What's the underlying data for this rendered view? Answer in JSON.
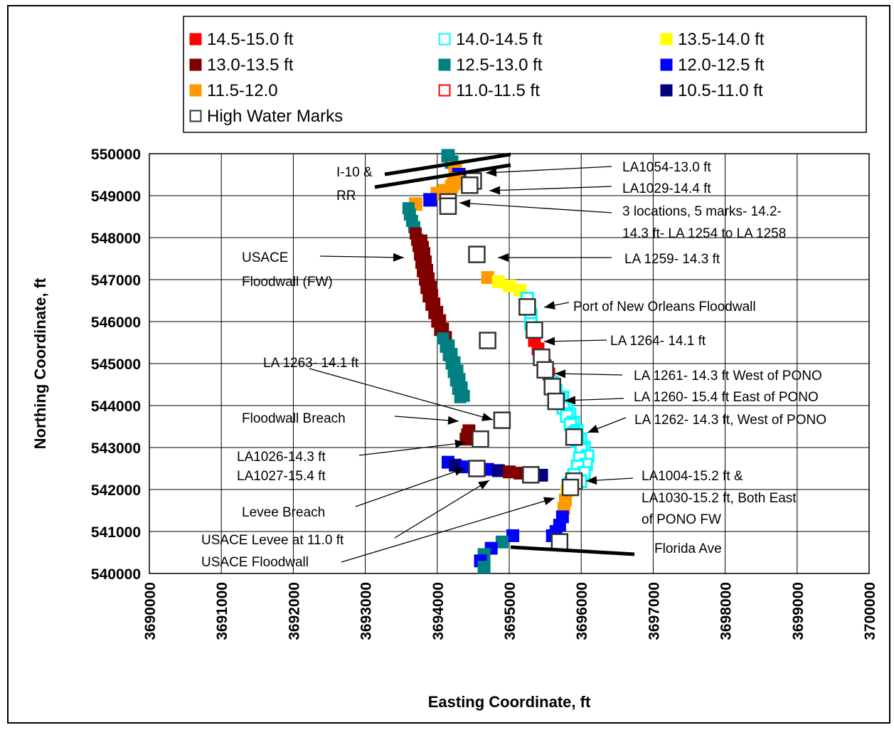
{
  "chart_data": {
    "type": "scatter",
    "xlabel": "Easting Coordinate, ft",
    "ylabel": "Northing Coordinate, ft",
    "xlim": [
      3690000,
      3700000
    ],
    "ylim": [
      540000,
      550000
    ],
    "x_ticks": [
      "3690000",
      "3691000",
      "3692000",
      "3693000",
      "3694000",
      "3695000",
      "3696000",
      "3697000",
      "3698000",
      "3699000",
      "3700000"
    ],
    "y_ticks": [
      "540000",
      "541000",
      "542000",
      "543000",
      "544000",
      "545000",
      "546000",
      "547000",
      "548000",
      "549000",
      "550000"
    ],
    "grid": true,
    "legend_placement": "top",
    "legend": [
      {
        "label": "14.5-15.0 ft",
        "color": "#ff0000",
        "style": "filled"
      },
      {
        "label": "14.0-14.5 ft",
        "color": "#00ffff",
        "style": "hollow"
      },
      {
        "label": "13.5-14.0 ft",
        "color": "#ffff00",
        "style": "filled"
      },
      {
        "label": "13.0-13.5 ft",
        "color": "#800000",
        "style": "filled"
      },
      {
        "label": "12.5-13.0 ft",
        "color": "#008080",
        "style": "filled"
      },
      {
        "label": "12.0-12.5 ft",
        "color": "#0000ff",
        "style": "filled"
      },
      {
        "label": "11.5-12.0",
        "color": "#ff9900",
        "style": "filled"
      },
      {
        "label": "11.0-11.5 ft",
        "color": "#ff0000",
        "style": "hollow"
      },
      {
        "label": "10.5-11.0 ft",
        "color": "#000080",
        "style": "filled"
      },
      {
        "label": "High Water Marks",
        "color": "#333333",
        "style": "hollow"
      }
    ],
    "series": [
      {
        "name": "USACE Floodwall (FW)",
        "points": [
          [
            3694150,
            549950
          ],
          [
            3694200,
            549800
          ],
          [
            3694250,
            549650
          ],
          [
            3694300,
            549500
          ],
          [
            3694270,
            549400
          ],
          [
            3694230,
            549300
          ],
          [
            3694200,
            549220
          ],
          [
            3694100,
            549120
          ],
          [
            3694000,
            549050
          ],
          [
            3693900,
            548900
          ],
          [
            3693700,
            548800
          ],
          [
            3693600,
            548700
          ],
          [
            3693620,
            548550
          ],
          [
            3693650,
            548400
          ],
          [
            3693680,
            548250
          ],
          [
            3693700,
            548100
          ],
          [
            3693720,
            547950
          ],
          [
            3693740,
            547800
          ],
          [
            3693760,
            547600
          ],
          [
            3693780,
            547400
          ],
          [
            3693800,
            547200
          ],
          [
            3693830,
            547000
          ],
          [
            3693850,
            546800
          ],
          [
            3693880,
            546600
          ],
          [
            3693920,
            546400
          ],
          [
            3693960,
            546200
          ],
          [
            3694000,
            546000
          ],
          [
            3694040,
            545800
          ],
          [
            3694080,
            545600
          ],
          [
            3694120,
            545400
          ],
          [
            3694160,
            545200
          ],
          [
            3694200,
            545000
          ],
          [
            3694230,
            544800
          ],
          [
            3694260,
            544600
          ],
          [
            3694290,
            544400
          ],
          [
            3694320,
            544200
          ]
        ]
      },
      {
        "name": "Floodwall Breach",
        "points": [
          [
            3694440,
            543400
          ],
          [
            3694420,
            543300
          ],
          [
            3694400,
            543200
          ]
        ]
      },
      {
        "name": "Levee Breach",
        "points": [
          [
            3694150,
            542650
          ],
          [
            3694250,
            542580
          ],
          [
            3694400,
            542540
          ],
          [
            3694550,
            542500
          ],
          [
            3694700,
            542480
          ],
          [
            3694850,
            542450
          ],
          [
            3695000,
            542420
          ],
          [
            3695150,
            542390
          ],
          [
            3695300,
            542360
          ],
          [
            3695450,
            542340
          ]
        ]
      },
      {
        "name": "Port of New Orleans Floodwall",
        "points": [
          [
            3694700,
            547050
          ],
          [
            3694850,
            546950
          ],
          [
            3695000,
            546850
          ],
          [
            3695150,
            546750
          ],
          [
            3695250,
            546550
          ],
          [
            3695280,
            546350
          ],
          [
            3695300,
            546150
          ],
          [
            3695300,
            545950
          ],
          [
            3695320,
            545750
          ],
          [
            3695350,
            545550
          ],
          [
            3695400,
            545350
          ],
          [
            3695450,
            545150
          ],
          [
            3695500,
            544950
          ],
          [
            3695550,
            544750
          ],
          [
            3695600,
            544550
          ],
          [
            3695650,
            544350
          ],
          [
            3695700,
            544150
          ],
          [
            3695750,
            543950
          ],
          [
            3695800,
            543750
          ],
          [
            3695850,
            543550
          ],
          [
            3695900,
            543350
          ],
          [
            3695950,
            543150
          ],
          [
            3696000,
            542950
          ],
          [
            3695980,
            542750
          ],
          [
            3695950,
            542550
          ],
          [
            3695900,
            542350
          ],
          [
            3695850,
            542150
          ],
          [
            3695800,
            541950
          ],
          [
            3695780,
            541750
          ],
          [
            3695760,
            541550
          ],
          [
            3695740,
            541350
          ],
          [
            3695700,
            541150
          ],
          [
            3695650,
            541000
          ],
          [
            3695600,
            540900
          ],
          [
            3695700,
            540800
          ]
        ]
      },
      {
        "name": "Florida Ave segment",
        "points": [
          [
            3695050,
            540900
          ],
          [
            3694900,
            540750
          ],
          [
            3694750,
            540600
          ],
          [
            3694650,
            540450
          ],
          [
            3694600,
            540300
          ],
          [
            3694650,
            540150
          ]
        ]
      },
      {
        "name": "High Water Marks",
        "points": [
          [
            3694500,
            549350
          ],
          [
            3694450,
            549250
          ],
          [
            3694150,
            548850
          ],
          [
            3694150,
            548750
          ],
          [
            3694550,
            547600
          ],
          [
            3694700,
            545550
          ],
          [
            3694900,
            543650
          ],
          [
            3694600,
            543200
          ],
          [
            3695250,
            546350
          ],
          [
            3695350,
            545800
          ],
          [
            3695450,
            545150
          ],
          [
            3695500,
            544850
          ],
          [
            3695600,
            544450
          ],
          [
            3695650,
            544100
          ],
          [
            3695900,
            543250
          ],
          [
            3695900,
            542200
          ],
          [
            3695850,
            542050
          ],
          [
            3695700,
            540750
          ],
          [
            3694550,
            542500
          ],
          [
            3695300,
            542350
          ]
        ]
      }
    ],
    "annotations": [
      "I-10 &",
      "RR",
      "LA1054-13.0 ft",
      "LA1029-14.4 ft",
      "3 locations, 5 marks- 14.2-",
      "14.3 ft- LA 1254 to LA 1258",
      "USACE",
      "Floodwall (FW)",
      "LA 1259- 14.3 ft",
      "Port of New Orleans Floodwall",
      "LA 1264- 14.1 ft",
      "LA 1263- 14.1 ft",
      "LA 1261- 14.3 ft West of PONO",
      "LA 1260- 15.4 ft East of PONO",
      "LA 1262- 14.3 ft, West of PONO",
      "Floodwall Breach",
      "LA1026-14.3 ft",
      "LA1027-15.4 ft",
      "LA1004-15.2 ft &",
      "LA1030-15.2 ft, Both East",
      "of PONO FW",
      "Levee Breach",
      "USACE Levee at 11.0 ft",
      "USACE Floodwall",
      "Florida Ave"
    ]
  }
}
